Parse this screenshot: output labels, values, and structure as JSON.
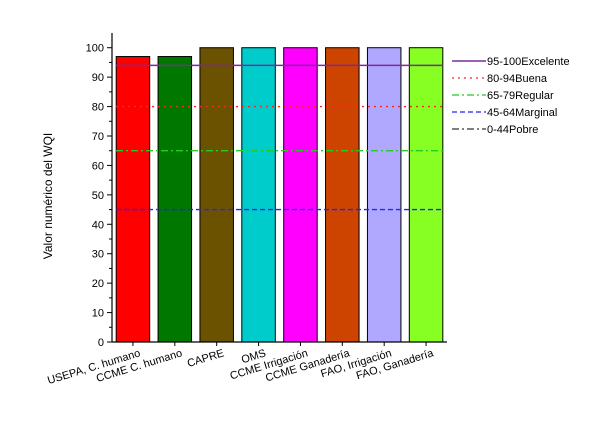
{
  "chart_data": {
    "type": "bar",
    "categories": [
      "USEPA, C. humano",
      "CCME C. humano",
      "CAPRE",
      "OMS",
      "CCME Irrigación",
      "CCME Ganadería",
      "FAO, Irrigación",
      "FAO, Ganadería"
    ],
    "values": [
      97,
      97,
      100,
      100,
      100,
      100,
      100,
      100
    ],
    "bar_colors": [
      "#ff0000",
      "#007800",
      "#6b5200",
      "#00cccc",
      "#ff00ff",
      "#cc4400",
      "#b0a8ff",
      "#88ff22"
    ],
    "ylabel": "Valor numérico del WQI",
    "xlabel": "",
    "ylim": [
      0,
      105
    ],
    "yticks": [
      0,
      10,
      20,
      30,
      40,
      50,
      60,
      70,
      80,
      90,
      100
    ],
    "grid": false,
    "legend_position": "right",
    "reference_lines": [
      {
        "name": "95-100Excelente",
        "value": 94,
        "color": "#7a2a9a",
        "style": "solid"
      },
      {
        "name": "80-94Buena",
        "value": 80,
        "color": "#ff2222",
        "style": "dotted"
      },
      {
        "name": "65-79Regular",
        "value": 65,
        "color": "#22cc22",
        "style": "dashdot"
      },
      {
        "name": "45-64Marginal",
        "value": 45,
        "color": "#2222ff",
        "style": "dashed"
      },
      {
        "name": "0-44Pobre",
        "value": 0,
        "color": "#333333",
        "style": "dashdot"
      }
    ]
  }
}
